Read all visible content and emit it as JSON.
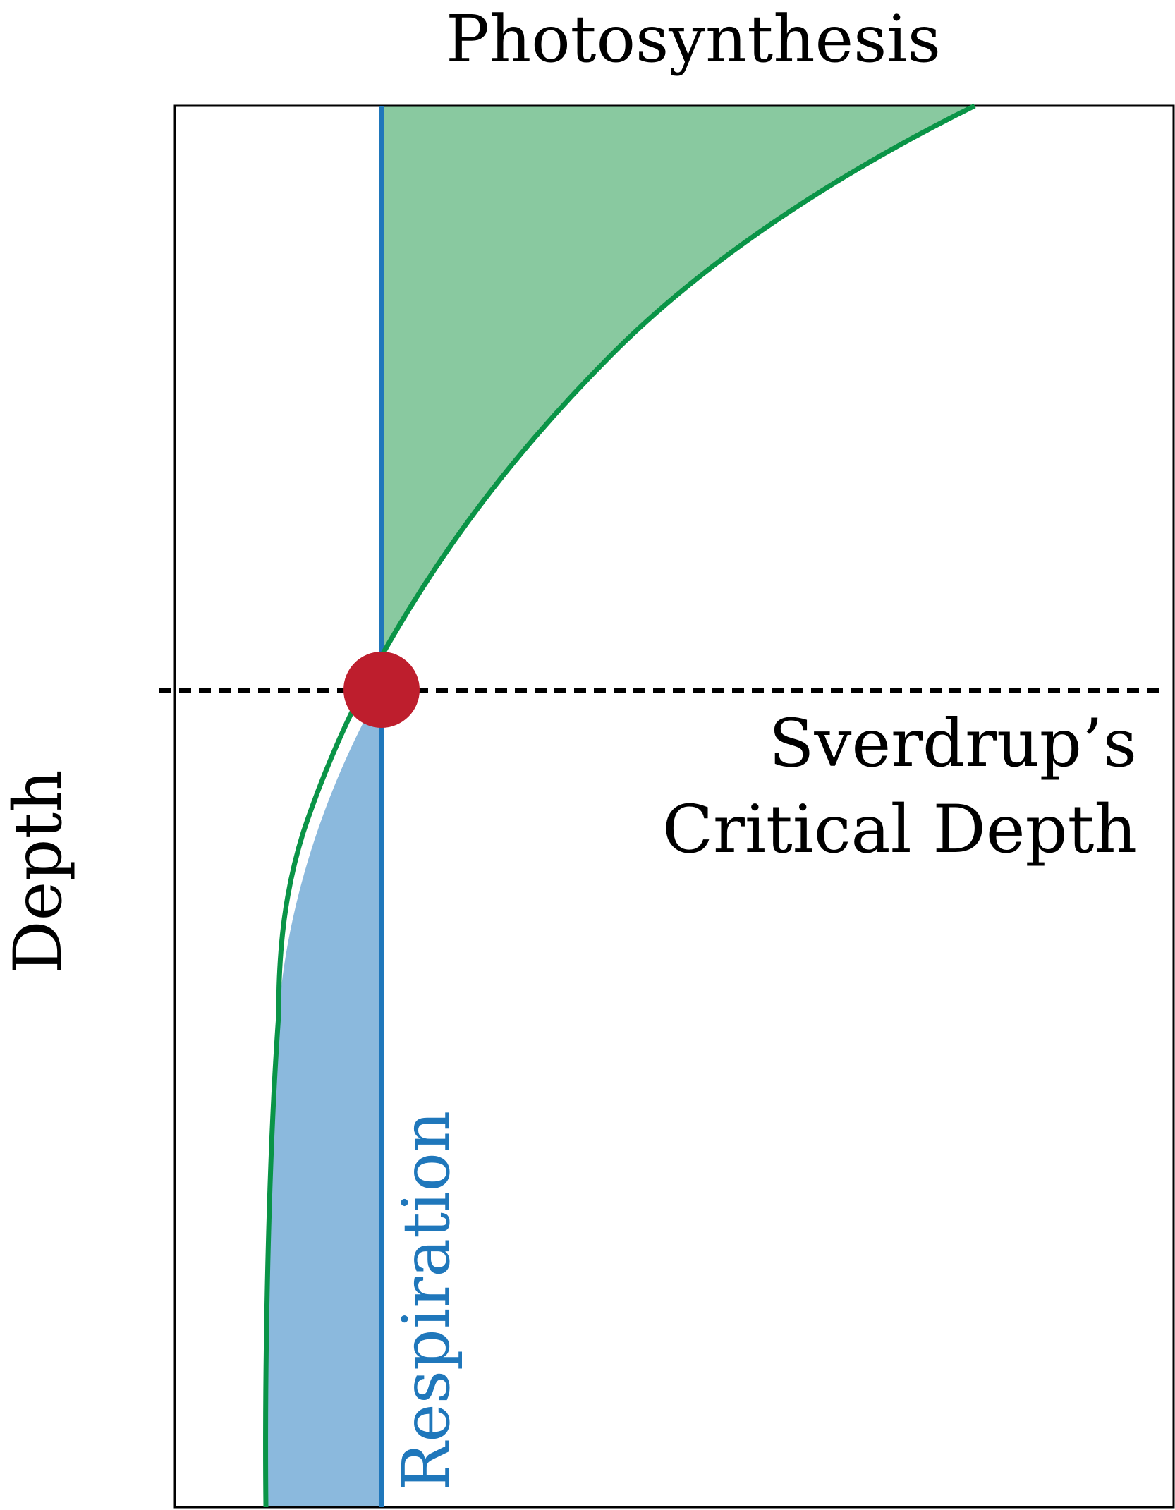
{
  "title": "Photosynthesis",
  "y_axis_label": "Depth",
  "respiration_label": "Respiration",
  "critical_depth_label": {
    "line1": "Sverdrup’s",
    "line2": "Critical Depth"
  },
  "colors": {
    "photosynthesis_line": "#0a9447",
    "photosynthesis_fill": "#89c9a0",
    "respiration_line": "#1f77bb",
    "respiration_fill": "#8bb9dd",
    "critical_point": "#be1e2d",
    "frame": "#000000",
    "critical_line": "#000000"
  }
}
